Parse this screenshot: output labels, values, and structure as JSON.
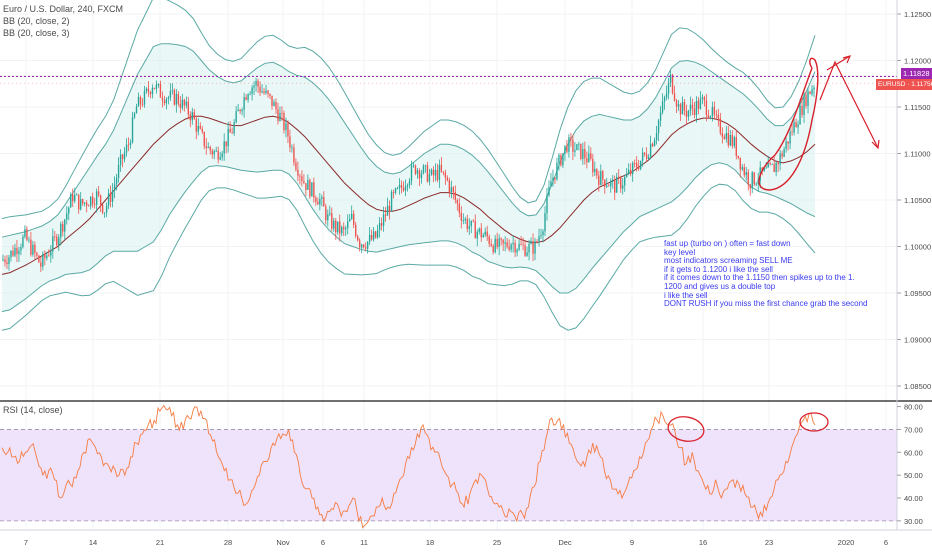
{
  "legend": {
    "title": "Euro / U.S. Dollar, 240, FXCM",
    "bb1": "BB (20, close, 2)",
    "bb2": "BB (20, close, 3)"
  },
  "rsi_label": "RSI (14, close)",
  "price_badges": {
    "line_price": "1.11828",
    "current_price": "1.11756",
    "symbol_label": "EURUSD · 1.11756"
  },
  "annotation_lines": [
    "fast up (turbo on ) often = fast down",
    "key level",
    "most indicators screaming SELL ME",
    "if it gets to 1.1200 i like the sell",
    "if it comes down to the 1.1150 then spikes up to the 1.",
    "1200 and gives us a double top",
    "i like the sell",
    "DONT RUSH if you miss the first chance grab the second"
  ],
  "colors": {
    "up_candle": "#26a69a",
    "down_candle": "#ef5350",
    "bb_band": "#5aa9a4",
    "bb_fill": "#d7f0ee",
    "bb_basis": "#8b2a2a",
    "rsi_line": "#f57c42",
    "rsi_band_fill": "#efe2fb",
    "key_level": "#9c27b0",
    "drawing": "#d8202a",
    "note_text": "#3a3af0"
  },
  "chart_data": [
    {
      "type": "candlestick",
      "title": "Euro / U.S. Dollar, 240, FXCM",
      "x_tick_labels": [
        "7",
        "14",
        "21",
        "28",
        "Nov",
        "6",
        "11",
        "18",
        "25",
        "Dec",
        "9",
        "16",
        "23",
        "2020",
        "6"
      ],
      "y_tick_labels": [
        "1.12500",
        "1.12000",
        "1.11500",
        "1.11000",
        "1.10500",
        "1.10000",
        "1.09500",
        "1.09000",
        "1.08500"
      ],
      "ylim": [
        1.0835,
        1.1265
      ],
      "key_level": 1.11828,
      "current_price": 1.11756,
      "grid": true,
      "closes": [
        1.0985,
        1.099,
        1.1,
        1.101,
        1.0995,
        1.098,
        1.0995,
        1.101,
        1.103,
        1.1055,
        1.1045,
        1.105,
        1.1055,
        1.104,
        1.106,
        1.109,
        1.111,
        1.115,
        1.116,
        1.1175,
        1.1165,
        1.116,
        1.116,
        1.115,
        1.114,
        1.112,
        1.1105,
        1.11,
        1.111,
        1.1125,
        1.115,
        1.117,
        1.1175,
        1.1165,
        1.1155,
        1.114,
        1.112,
        1.109,
        1.107,
        1.106,
        1.105,
        1.103,
        1.102,
        1.1015,
        1.103,
        1.1005,
        1.1005,
        1.101,
        1.103,
        1.105,
        1.106,
        1.1075,
        1.1085,
        1.108,
        1.1075,
        1.108,
        1.107,
        1.105,
        1.103,
        1.102,
        1.1015,
        1.101,
        1.1,
        1.1,
        1.1005,
        1.1,
        1.0998,
        1.1,
        1.1025,
        1.107,
        1.109,
        1.111,
        1.1105,
        1.11,
        1.109,
        1.1075,
        1.107,
        1.1065,
        1.107,
        1.108,
        1.109,
        1.11,
        1.112,
        1.115,
        1.118,
        1.115,
        1.1145,
        1.115,
        1.1155,
        1.1145,
        1.113,
        1.112,
        1.111,
        1.1085,
        1.107,
        1.1075,
        1.108,
        1.1085,
        1.11,
        1.112,
        1.114,
        1.116,
        1.1175
      ],
      "bb_basis": [
        1.097,
        1.0972,
        1.0976,
        1.098,
        1.0985,
        1.099,
        1.0995,
        1.1,
        1.1008,
        1.1015,
        1.1022,
        1.103,
        1.104,
        1.105,
        1.106,
        1.107,
        1.108,
        1.109,
        1.11,
        1.111,
        1.1118,
        1.1126,
        1.1132,
        1.1137,
        1.114,
        1.114,
        1.1138,
        1.1135,
        1.1132,
        1.113,
        1.113,
        1.1133,
        1.1136,
        1.1139,
        1.114,
        1.1138,
        1.1133,
        1.1126,
        1.1118,
        1.1108,
        1.1098,
        1.1088,
        1.1078,
        1.1068,
        1.106,
        1.1052,
        1.1045,
        1.104,
        1.1038,
        1.1038,
        1.104,
        1.1044,
        1.1048,
        1.1052,
        1.1055,
        1.1058,
        1.1058,
        1.1056,
        1.1052,
        1.1046,
        1.104,
        1.1032,
        1.1025,
        1.1018,
        1.1012,
        1.1008,
        1.1005,
        1.1004,
        1.1006,
        1.1012,
        1.102,
        1.103,
        1.104,
        1.105,
        1.1058,
        1.1064,
        1.1068,
        1.1072,
        1.1076,
        1.108,
        1.1086,
        1.1092,
        1.11,
        1.111,
        1.112,
        1.1127,
        1.1132,
        1.1136,
        1.1138,
        1.1138,
        1.1136,
        1.1132,
        1.1126,
        1.1118,
        1.111,
        1.1103,
        1.1097,
        1.1092,
        1.109,
        1.1092,
        1.1096,
        1.1102,
        1.111
      ],
      "bb_halfwidth_2sd": [
        0.004,
        0.004,
        0.0038,
        0.0036,
        0.0034,
        0.0032,
        0.0032,
        0.0034,
        0.0038,
        0.0044,
        0.005,
        0.0055,
        0.0058,
        0.006,
        0.0065,
        0.0075,
        0.0085,
        0.0095,
        0.01,
        0.0105,
        0.01,
        0.0092,
        0.0085,
        0.0078,
        0.007,
        0.006,
        0.0052,
        0.0048,
        0.0046,
        0.0046,
        0.0048,
        0.0052,
        0.0056,
        0.0058,
        0.0058,
        0.0056,
        0.0055,
        0.0058,
        0.0064,
        0.0068,
        0.007,
        0.007,
        0.0068,
        0.0065,
        0.006,
        0.0055,
        0.005,
        0.0046,
        0.0042,
        0.004,
        0.004,
        0.0042,
        0.0045,
        0.0048,
        0.005,
        0.0052,
        0.0052,
        0.0052,
        0.0052,
        0.0052,
        0.005,
        0.0048,
        0.0044,
        0.004,
        0.0035,
        0.003,
        0.0028,
        0.003,
        0.004,
        0.0055,
        0.007,
        0.008,
        0.0085,
        0.0085,
        0.0082,
        0.0078,
        0.0072,
        0.0066,
        0.006,
        0.0056,
        0.0054,
        0.0056,
        0.006,
        0.0066,
        0.0072,
        0.0072,
        0.0068,
        0.0062,
        0.0056,
        0.005,
        0.0046,
        0.0044,
        0.0044,
        0.0046,
        0.0046,
        0.0044,
        0.004,
        0.0038,
        0.004,
        0.0046,
        0.0055,
        0.0066,
        0.0078
      ]
    },
    {
      "type": "line",
      "title": "RSI (14, close)",
      "y_tick_labels": [
        "80.00",
        "70.00",
        "60.00",
        "50.00",
        "40.00",
        "30.00"
      ],
      "ylim": [
        26,
        82
      ],
      "band": [
        30,
        70
      ],
      "values": [
        62,
        60,
        58,
        56,
        60,
        63,
        57,
        50,
        52,
        48,
        40,
        46,
        45,
        52,
        60,
        66,
        62,
        58,
        55,
        54,
        50,
        50,
        58,
        64,
        68,
        72,
        74,
        78,
        79,
        76,
        72,
        70,
        75,
        80,
        78,
        74,
        65,
        58,
        52,
        48,
        42,
        40,
        38,
        44,
        50,
        56,
        62,
        66,
        68,
        70,
        60,
        50,
        44,
        40,
        36,
        30,
        34,
        38,
        32,
        34,
        40,
        30,
        28,
        32,
        36,
        40,
        36,
        42,
        48,
        55,
        62,
        68,
        72,
        66,
        60,
        56,
        50,
        46,
        42,
        36,
        42,
        48,
        50,
        44,
        38,
        36,
        32,
        34,
        30,
        33,
        36,
        45,
        56,
        66,
        75,
        74,
        72,
        64,
        58,
        54,
        58,
        64,
        60,
        52,
        48,
        44,
        40,
        46,
        52,
        58,
        64,
        70,
        74,
        76,
        72,
        70,
        62,
        55,
        60,
        52,
        46,
        42,
        48,
        40,
        44,
        48,
        46,
        42,
        36,
        34,
        32,
        38,
        44,
        50,
        56,
        62,
        68,
        74,
        77,
        72
      ]
    }
  ]
}
